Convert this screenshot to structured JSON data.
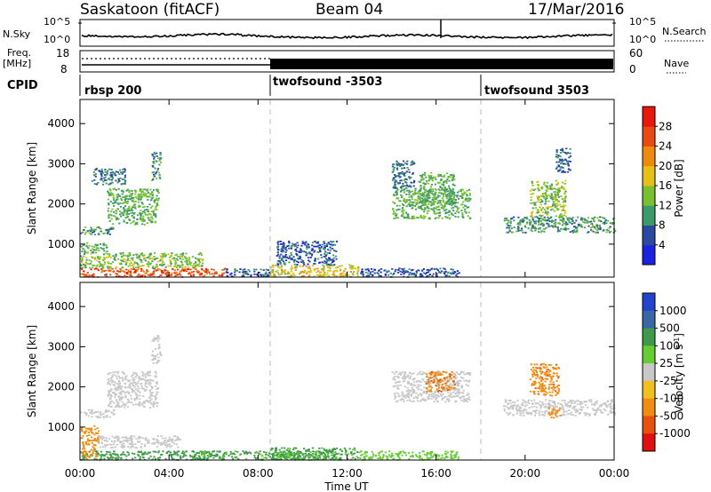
{
  "header": {
    "title": "Saskatoon (fitACF)",
    "beam": "Beam 04",
    "date": "17/Mar/2016"
  },
  "noise_panel": {
    "left_label": "N.Sky",
    "right_label": "N.Search",
    "left_ticks": [
      "10^5",
      "10^0"
    ],
    "right_ticks": [
      "10^5",
      "10^0"
    ]
  },
  "freq_panel": {
    "left_label_line1": "Freq.",
    "left_label_line2": "[MHz]",
    "right_label": "Nave",
    "left_ticks": [
      "18",
      "8"
    ],
    "right_ticks": [
      "60",
      "0"
    ]
  },
  "cpid_panel": {
    "label": "CPID",
    "segments": [
      {
        "name": "rbsp 200",
        "start_h": 0.0
      },
      {
        "name": "twofsound -3503",
        "start_h": 8.5
      },
      {
        "name": "twofsound 3503",
        "start_h": 18.0
      }
    ]
  },
  "axes": {
    "x_ticks": [
      "00:00",
      "04:00",
      "08:00",
      "12:00",
      "16:00",
      "20:00",
      "00:00"
    ],
    "x_label": "Time UT",
    "y_ticks": [
      "1000",
      "2000",
      "3000",
      "4000"
    ],
    "y_label": "Slant Range [km]"
  },
  "colorbars": {
    "power": {
      "label": "Power [dB]",
      "ticks": [
        "4",
        "8",
        "12",
        "16",
        "20",
        "24",
        "28"
      ],
      "colors": [
        "#1a22e0",
        "#2a4aa0",
        "#3c9a6a",
        "#78c030",
        "#e6c018",
        "#ef8a10",
        "#e84a12",
        "#e8180c"
      ]
    },
    "velocity": {
      "label_main": "Velocity [m s",
      "label_sup": "-1",
      "label_end": "]",
      "ticks": [
        "1000",
        "500",
        "100",
        "25",
        "-25",
        "-100",
        "-500",
        "-1000"
      ],
      "colors": [
        "#2244cc",
        "#3a66a8",
        "#3e9a4a",
        "#66cc33",
        "#c8c8c8",
        "#f0c020",
        "#f08c10",
        "#e85010",
        "#e01010"
      ]
    }
  },
  "chart_data": {
    "type": "heatmap",
    "title": "Saskatoon (fitACF)",
    "xlabel": "Time UT",
    "ylabel": "Slant Range [km]",
    "xlim": [
      0,
      24
    ],
    "ylim": [
      180,
      4600
    ],
    "power_regions": [
      {
        "t0": 0.0,
        "t1": 6.5,
        "r0": 200,
        "r1": 420,
        "power": 26
      },
      {
        "t0": 0.0,
        "t1": 5.5,
        "r0": 420,
        "r1": 800,
        "power": 14
      },
      {
        "t0": 0.0,
        "t1": 1.2,
        "r0": 800,
        "r1": 1050,
        "power": 12
      },
      {
        "t0": 0.0,
        "t1": 1.5,
        "r0": 1250,
        "r1": 1450,
        "power": 10
      },
      {
        "t0": 1.2,
        "t1": 3.5,
        "r0": 1500,
        "r1": 2400,
        "power": 12
      },
      {
        "t0": 3.2,
        "t1": 3.6,
        "r0": 2600,
        "r1": 3300,
        "power": 10
      },
      {
        "t0": 0.5,
        "t1": 2.0,
        "r0": 2500,
        "r1": 2900,
        "power": 8
      },
      {
        "t0": 6.5,
        "t1": 8.5,
        "r0": 200,
        "r1": 400,
        "power": 6
      },
      {
        "t0": 8.5,
        "t1": 12.5,
        "r0": 200,
        "r1": 500,
        "power": 18
      },
      {
        "t0": 8.8,
        "t1": 11.5,
        "r0": 500,
        "r1": 1100,
        "power": 6
      },
      {
        "t0": 12.5,
        "t1": 17.0,
        "r0": 200,
        "r1": 420,
        "power": 6
      },
      {
        "t0": 14.0,
        "t1": 17.5,
        "r0": 1650,
        "r1": 2400,
        "power": 12
      },
      {
        "t0": 14.0,
        "t1": 15.0,
        "r0": 2400,
        "r1": 3100,
        "power": 8
      },
      {
        "t0": 15.2,
        "t1": 16.8,
        "r0": 2000,
        "r1": 2800,
        "power": 12
      },
      {
        "t0": 19.0,
        "t1": 24.0,
        "r0": 1300,
        "r1": 1700,
        "power": 10
      },
      {
        "t0": 20.2,
        "t1": 21.8,
        "r0": 1700,
        "r1": 2600,
        "power": 14
      },
      {
        "t0": 21.3,
        "t1": 22.0,
        "r0": 2800,
        "r1": 3400,
        "power": 6
      }
    ],
    "velocity_regions": [
      {
        "t0": 0.0,
        "t1": 6.0,
        "r0": 200,
        "r1": 420,
        "velocity": 150
      },
      {
        "t0": 5.0,
        "t1": 11.5,
        "r0": 200,
        "r1": 420,
        "velocity": 120
      },
      {
        "t0": 0.0,
        "t1": 0.8,
        "r0": 250,
        "r1": 1050,
        "velocity": -200
      },
      {
        "t0": 0.8,
        "t1": 4.5,
        "r0": 500,
        "r1": 800,
        "velocity": 10
      },
      {
        "t0": 0.0,
        "t1": 1.5,
        "r0": 1250,
        "r1": 1450,
        "velocity": 10
      },
      {
        "t0": 1.2,
        "t1": 3.5,
        "r0": 1500,
        "r1": 2400,
        "velocity": 5
      },
      {
        "t0": 3.2,
        "t1": 3.6,
        "r0": 2600,
        "r1": 3300,
        "velocity": 10
      },
      {
        "t0": 8.5,
        "t1": 12.5,
        "r0": 200,
        "r1": 500,
        "velocity": 120
      },
      {
        "t0": 12.5,
        "t1": 17.0,
        "r0": 200,
        "r1": 420,
        "velocity": 60
      },
      {
        "t0": 14.0,
        "t1": 17.5,
        "r0": 1650,
        "r1": 2400,
        "velocity": 10
      },
      {
        "t0": 15.5,
        "t1": 16.8,
        "r0": 1900,
        "r1": 2400,
        "velocity": -450
      },
      {
        "t0": 19.0,
        "t1": 24.0,
        "r0": 1300,
        "r1": 1700,
        "velocity": 10
      },
      {
        "t0": 20.2,
        "t1": 21.5,
        "r0": 1800,
        "r1": 2600,
        "velocity": -400
      },
      {
        "t0": 21.0,
        "t1": 21.6,
        "r0": 1250,
        "r1": 1500,
        "velocity": -300
      }
    ]
  }
}
